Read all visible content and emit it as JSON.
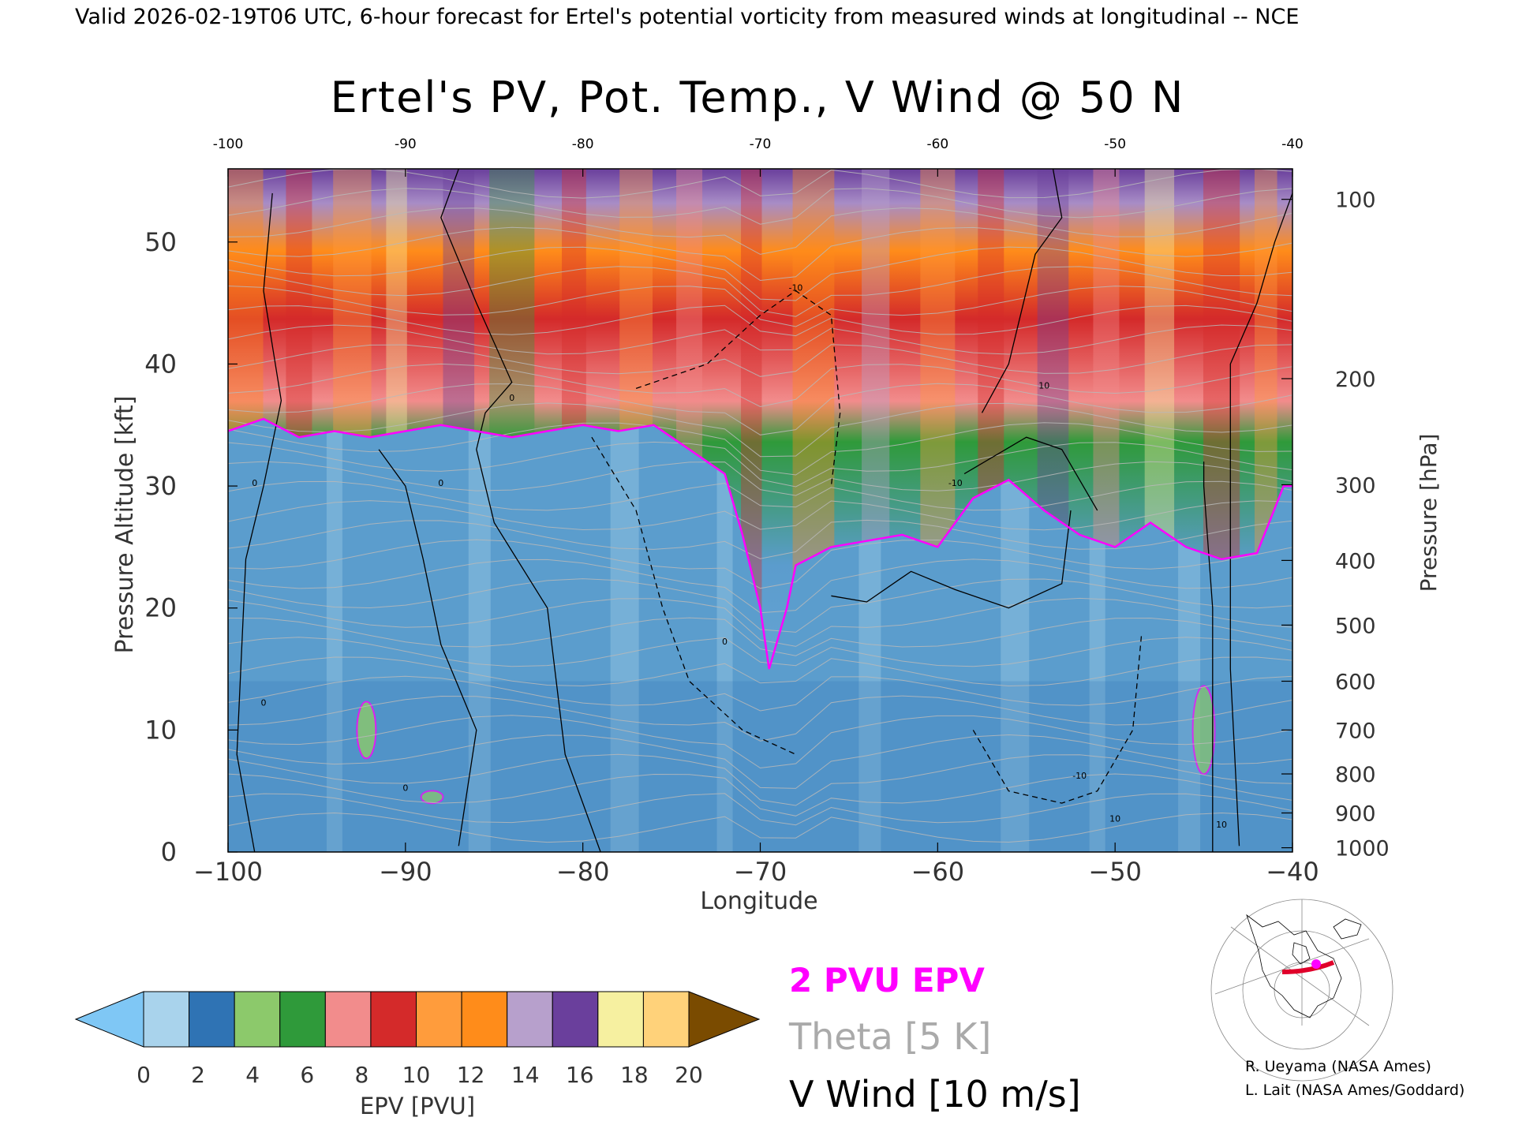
{
  "header": {
    "valid_line": "Valid 2026-02-19T06 UTC, 6-hour forecast for Ertel's potential vorticity from measured winds at longitudinal -- NCE"
  },
  "chart_data": {
    "type": "heatmap",
    "title": "Ertel's PV, Pot. Temp., V Wind @ 50 N",
    "xlabel": "Longitude",
    "ylabel_left": "Pressure Altitude [kft]",
    "ylabel_right": "Pressure [hPa]",
    "xlim": [
      -100,
      -40
    ],
    "ylim": [
      0,
      56
    ],
    "x_ticks": [
      -100,
      -90,
      -80,
      -70,
      -60,
      -50,
      -40
    ],
    "x_tick_labels": [
      "−100",
      "−90",
      "−80",
      "−70",
      "−60",
      "−50",
      "−40"
    ],
    "top_x_ticks": [
      -100,
      -90,
      -80,
      -70,
      -60,
      -50,
      -40
    ],
    "top_x_tick_labels": [
      "-100",
      "-90",
      "-80",
      "-70",
      "-60",
      "-50",
      "-40"
    ],
    "y_ticks": [
      0,
      10,
      20,
      30,
      40,
      50
    ],
    "y_tick_labels": [
      "0",
      "10",
      "20",
      "30",
      "40",
      "50"
    ],
    "pressure_ticks": [
      {
        "hPa": 1000,
        "kft": 0.35,
        "label": "1000"
      },
      {
        "hPa": 900,
        "kft": 3.2,
        "label": "900"
      },
      {
        "hPa": 800,
        "kft": 6.4,
        "label": "800"
      },
      {
        "hPa": 700,
        "kft": 10.0,
        "label": "700"
      },
      {
        "hPa": 600,
        "kft": 14.0,
        "label": "600"
      },
      {
        "hPa": 500,
        "kft": 18.6,
        "label": "500"
      },
      {
        "hPa": 400,
        "kft": 23.9,
        "label": "400"
      },
      {
        "hPa": 300,
        "kft": 30.1,
        "label": "300"
      },
      {
        "hPa": 200,
        "kft": 38.8,
        "label": "200"
      },
      {
        "hPa": 100,
        "kft": 53.5,
        "label": "100"
      }
    ],
    "tropopause_2pvu_kft": [
      [
        -100,
        34.5
      ],
      [
        -98,
        35.5
      ],
      [
        -96,
        34.0
      ],
      [
        -94,
        34.5
      ],
      [
        -92,
        34.0
      ],
      [
        -90,
        34.5
      ],
      [
        -88,
        35.0
      ],
      [
        -86,
        34.5
      ],
      [
        -84,
        34.0
      ],
      [
        -82,
        34.5
      ],
      [
        -80,
        35.0
      ],
      [
        -78,
        34.5
      ],
      [
        -76,
        35.0
      ],
      [
        -74,
        33.0
      ],
      [
        -72,
        31.0
      ],
      [
        -71,
        26.0
      ],
      [
        -70,
        20.0
      ],
      [
        -69.5,
        15.0
      ],
      [
        -68.5,
        20.0
      ],
      [
        -68,
        23.5
      ],
      [
        -66,
        25.0
      ],
      [
        -64,
        25.5
      ],
      [
        -62,
        26.0
      ],
      [
        -60,
        25.0
      ],
      [
        -58,
        29.0
      ],
      [
        -56,
        30.5
      ],
      [
        -54,
        28.0
      ],
      [
        -52,
        26.0
      ],
      [
        -50,
        25.0
      ],
      [
        -48,
        27.0
      ],
      [
        -46,
        25.0
      ],
      [
        -44,
        24.0
      ],
      [
        -42,
        24.5
      ],
      [
        -40.5,
        30.0
      ],
      [
        -40,
        30.0
      ]
    ],
    "v_wind_contour_values": [
      "0",
      "0",
      "0",
      "0",
      "-10",
      "-10",
      "-10",
      "10",
      "10",
      "10",
      "0",
      "0"
    ],
    "colorbar": {
      "label": "EPV [PVU]",
      "ticks": [
        "0",
        "2",
        "4",
        "6",
        "8",
        "10",
        "12",
        "14",
        "16",
        "18",
        "20"
      ],
      "colors": [
        "#a9d3ec",
        "#2f73b4",
        "#8cc96b",
        "#2f9a3a",
        "#f28c8c",
        "#d42a2a",
        "#ff9c3c",
        "#ff8c1a",
        "#b7a0cc",
        "#6a3f9c",
        "#f6f0a0",
        "#ffd27a"
      ],
      "under_color": "#7fc7f5",
      "over_color": "#7a4b00"
    }
  },
  "legend": {
    "pvu_label": "2 PVU EPV",
    "theta_label": "Theta [5 K]",
    "wind_label": "V Wind [10 m/s]",
    "pvu_color": "#ff00ff",
    "theta_color": "#aaaaaa",
    "wind_color": "#000000"
  },
  "credits": {
    "line1": "R. Ueyama (NASA Ames)",
    "line2": "L. Lait (NASA Ames/Goddard)"
  }
}
